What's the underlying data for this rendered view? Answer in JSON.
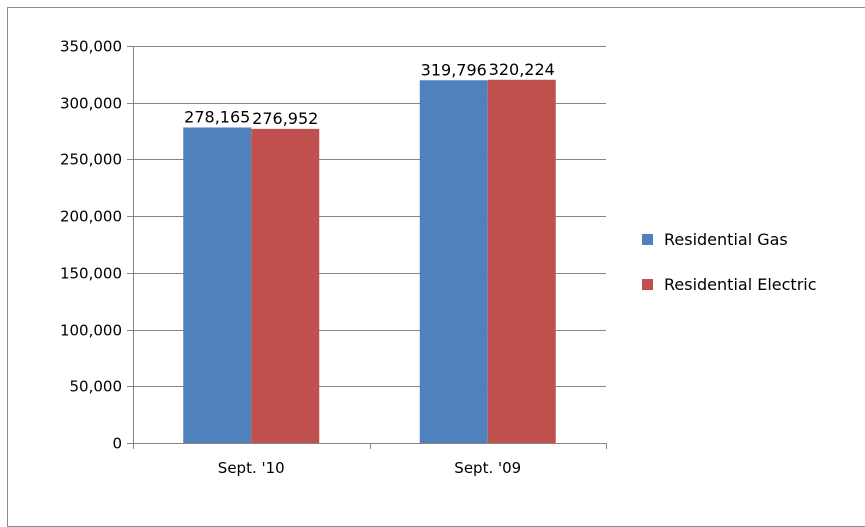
{
  "chart_data": {
    "type": "bar",
    "categories": [
      "Sept. '10",
      "Sept. '09"
    ],
    "series": [
      {
        "name": "Residential Gas",
        "color": "#4f81bd",
        "values": [
          278165,
          319796
        ]
      },
      {
        "name": "Residential Electric",
        "color": "#c0504d",
        "values": [
          276952,
          320224
        ]
      }
    ],
    "data_labels": [
      [
        "278,165",
        "319,796"
      ],
      [
        "276,952",
        "320,224"
      ]
    ],
    "yticks": [
      "0",
      "50,000",
      "100,000",
      "150,000",
      "200,000",
      "250,000",
      "300,000",
      "350,000"
    ],
    "ylim": [
      0,
      350000
    ],
    "grid": true,
    "legend_position": "right",
    "title": "",
    "xlabel": "",
    "ylabel": ""
  }
}
